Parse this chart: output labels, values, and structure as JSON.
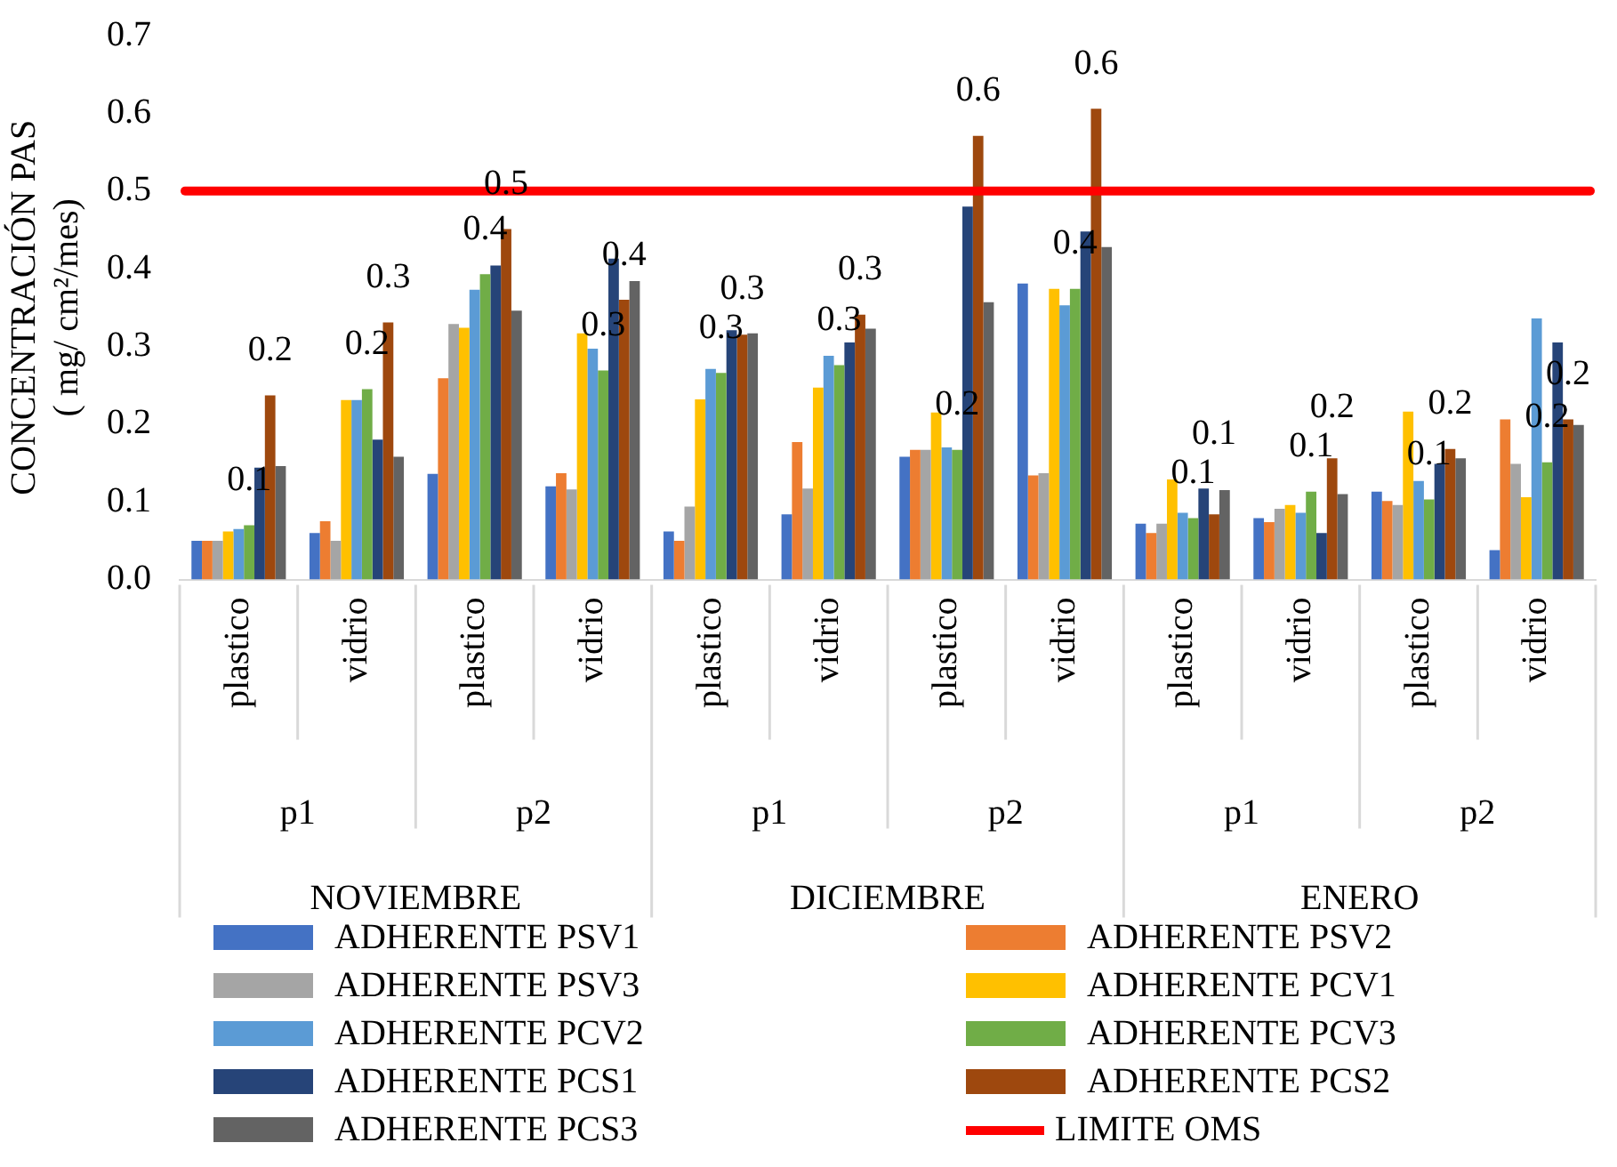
{
  "chart_data": {
    "type": "bar",
    "ylabel": "CONCENTRACIÓN PAS\n( mg/ cm²/mes)",
    "categories": [
      "plastico",
      "vidrio",
      "plastico",
      "vidrio",
      "plastico",
      "vidrio",
      "plastico",
      "vidrio",
      "plastico",
      "vidrio",
      "plastico",
      "vidrio"
    ],
    "annotations": [
      "p1",
      "p2",
      "p1",
      "p2",
      "p1",
      "p2",
      "NOVIEMBRE",
      "DICIEMBRE",
      "ENERO"
    ],
    "ylim": [
      0,
      0.7
    ],
    "yticks": [
      {
        "value": 0,
        "label": "0.0"
      },
      0.1,
      0.2,
      0.3,
      0.4,
      0.5,
      0.6,
      0.7
    ],
    "grid": false,
    "legend": "bottom",
    "series": [
      {
        "name": "ADHERENTE PSV1",
        "color": "#4472c4",
        "values": [
          0.05,
          0.06,
          0.136,
          0.12,
          0.062,
          0.084,
          0.158,
          0.381,
          0.072,
          0.079,
          0.113,
          0.038
        ]
      },
      {
        "name": "ADHERENTE PSV2",
        "color": "#ed7d31",
        "values": [
          0.05,
          0.075,
          0.259,
          0.137,
          0.05,
          0.177,
          0.167,
          0.134,
          0.06,
          0.074,
          0.101,
          0.206
        ]
      },
      {
        "name": "ADHERENTE PSV3",
        "color": "#a5a5a5",
        "values": [
          0.05,
          0.05,
          0.329,
          0.116,
          0.094,
          0.117,
          0.167,
          0.137,
          0.072,
          0.091,
          0.096,
          0.149
        ]
      },
      {
        "name": "ADHERENTE PCV1",
        "color": "#ffc000",
        "values": [
          0.062,
          0.231,
          0.324,
          0.317,
          0.232,
          0.247,
          0.215,
          0.374,
          0.129,
          0.096,
          0.216,
          0.106
        ]
      },
      {
        "name": "ADHERENTE PCV2",
        "color": "#5b9bd5",
        "values": [
          0.065,
          0.231,
          0.373,
          0.297,
          0.271,
          0.288,
          0.17,
          0.353,
          0.086,
          0.086,
          0.127,
          0.336
        ]
      },
      {
        "name": "ADHERENTE PCV3",
        "color": "#70ad47",
        "values": [
          0.07,
          0.245,
          0.393,
          0.269,
          0.266,
          0.276,
          0.167,
          0.374,
          0.079,
          0.113,
          0.103,
          0.151
        ],
        "value_labels": [
          "0.1",
          "0.2",
          "0.4",
          "0.3",
          "0.3",
          "0.3",
          "0.2",
          "0.4",
          "0.1",
          "0.1",
          "0.1",
          "0.2"
        ]
      },
      {
        "name": "ADHERENTE PCS1",
        "color": "#264478",
        "values": [
          0.144,
          0.18,
          0.404,
          0.413,
          0.321,
          0.305,
          0.48,
          0.448,
          0.117,
          0.06,
          0.149,
          0.305
        ]
      },
      {
        "name": "ADHERENTE PCS2",
        "color": "#9e480e",
        "values": [
          0.237,
          0.331,
          0.451,
          0.36,
          0.315,
          0.341,
          0.571,
          0.606,
          0.084,
          0.156,
          0.168,
          0.206
        ],
        "value_labels": [
          "0.2",
          "0.3",
          "0.5",
          "0.4",
          "0.3",
          "0.3",
          "0.6",
          "0.6",
          "0.1",
          "0.2",
          "0.2",
          "0.2"
        ]
      },
      {
        "name": "ADHERENTE PCS3",
        "color": "#636363",
        "values": [
          0.146,
          0.158,
          0.346,
          0.384,
          0.317,
          0.323,
          0.357,
          0.428,
          0.115,
          0.11,
          0.156,
          0.199
        ]
      }
    ],
    "ref_lines": [
      {
        "axis": "y",
        "value": 0.5,
        "label": "LIMITE OMS",
        "color": "#ff0000"
      }
    ]
  }
}
